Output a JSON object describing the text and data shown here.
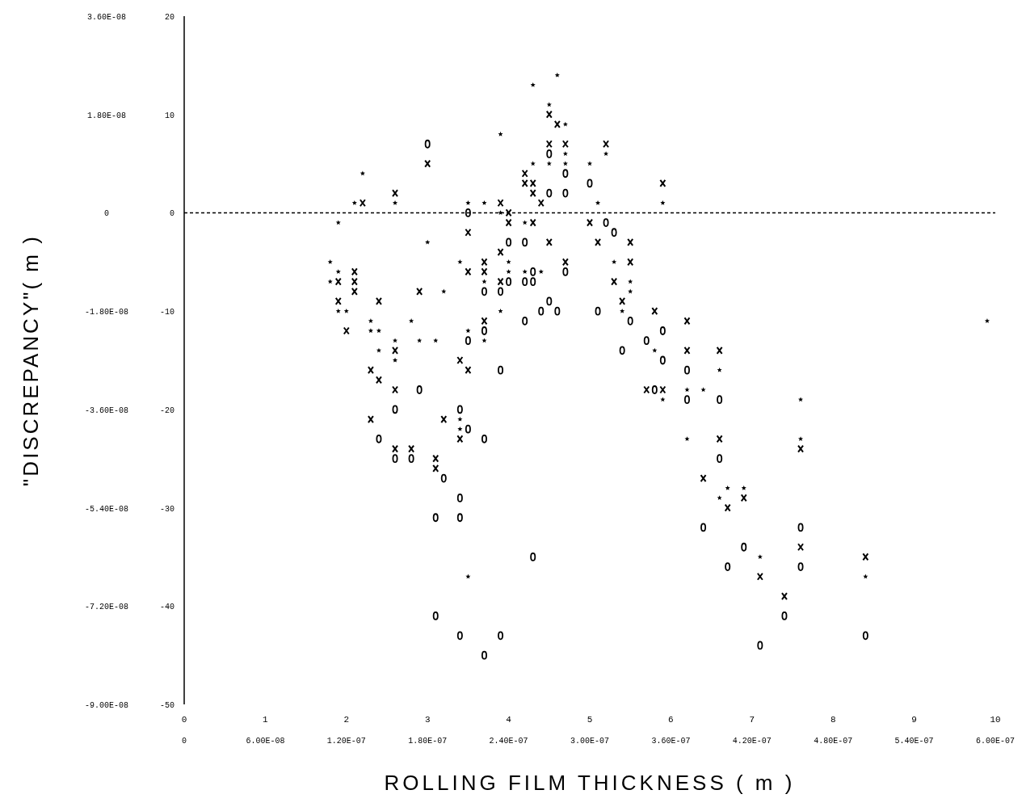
{
  "chart_data": {
    "type": "scatter",
    "xlabel": "ROLLING FILM THICKNESS ( m )",
    "ylabel": "\"DISCREPANCY\"( m )",
    "xlim": [
      0,
      6e-07
    ],
    "xticks": [
      0,
      {
        "value": 6e-08,
        "label": "6.00E-08"
      },
      {
        "value": 1.2e-07,
        "label": "1.20E-07"
      },
      {
        "value": 1.8e-07,
        "label": "1.80E-07"
      },
      {
        "value": 2.4e-07,
        "label": "2.40E-07"
      },
      {
        "value": 3e-07,
        "label": "3.00E-07"
      },
      {
        "value": 3.6e-07,
        "label": "3.60E-07"
      },
      {
        "value": 4.2e-07,
        "label": "4.20E-07"
      },
      {
        "value": 4.8e-07,
        "label": "4.80E-07"
      },
      {
        "value": 5.4e-07,
        "label": "5.40E-07"
      },
      {
        "value": 6e-07,
        "label": "6.00E-07"
      }
    ],
    "x2lim": [
      0,
      10
    ],
    "x2ticks": [
      0,
      1,
      2,
      3,
      4,
      5,
      6,
      7,
      8,
      9,
      10
    ],
    "ylim": [
      -9e-08,
      3.6e-08
    ],
    "yticks": [
      {
        "value": 3.6e-08,
        "label": "3.60E-08"
      },
      {
        "value": 1.8e-08,
        "label": "1.80E-08"
      },
      0,
      {
        "value": -1.8e-08,
        "label": "-1.80E-08"
      },
      {
        "value": -3.6e-08,
        "label": "-3.60E-08"
      },
      {
        "value": -5.4e-08,
        "label": "-5.40E-08"
      },
      {
        "value": -7.2e-08,
        "label": "-7.20E-08"
      },
      {
        "value": -9e-08,
        "label": "-9.00E-08"
      }
    ],
    "y2lim": [
      -50,
      20
    ],
    "y2ticks": [
      20,
      10,
      0,
      -10,
      -20,
      -30,
      -40,
      -50
    ],
    "ref_lines": [
      {
        "axis": "y",
        "value": 0,
        "line_style": "dashed",
        "color": "#000000"
      }
    ],
    "series": [
      {
        "color": "#000000",
        "marker": "cross",
        "x": [
          2.7e-07,
          2.76e-07,
          2.7e-07,
          2.82e-07,
          3.12e-07,
          1.8e-07,
          2.52e-07,
          2.52e-07,
          2.58e-07,
          3.54e-07,
          1.56e-07,
          2.58e-07,
          1.32e-07,
          2.34e-07,
          2.64e-07,
          2.4e-07,
          2.4e-07,
          2.58e-07,
          3e-07,
          2.1e-07,
          2.7e-07,
          3.06e-07,
          3.3e-07,
          2.34e-07,
          2.22e-07,
          2.82e-07,
          3.3e-07,
          1.26e-07,
          2.1e-07,
          2.22e-07,
          1.14e-07,
          1.26e-07,
          2.34e-07,
          3.18e-07,
          1.26e-07,
          1.74e-07,
          1.14e-07,
          1.44e-07,
          3.24e-07,
          2.22e-07,
          3.48e-07,
          3.72e-07,
          1.2e-07,
          1.56e-07,
          3.72e-07,
          3.96e-07,
          2.04e-07,
          1.38e-07,
          2.1e-07,
          1.44e-07,
          1.56e-07,
          3.42e-07,
          3.54e-07,
          1.38e-07,
          1.92e-07,
          2.04e-07,
          3.96e-07,
          1.56e-07,
          1.68e-07,
          4.56e-07,
          1.86e-07,
          1.86e-07,
          3.84e-07,
          4.14e-07,
          4.02e-07,
          4.56e-07,
          5.04e-07,
          4.26e-07,
          4.44e-07
        ],
        "values": [
          1.8e-08,
          1.62e-08,
          1.26e-08,
          1.26e-08,
          1.26e-08,
          9e-09,
          7.2e-09,
          5.4e-09,
          5.4e-09,
          5.4e-09,
          3.6e-09,
          3.6e-09,
          1.8e-09,
          1.8e-09,
          1.8e-09,
          0,
          -1.8e-09,
          -1.8e-09,
          -1.8e-09,
          -3.6e-09,
          -5.4e-09,
          -5.4e-09,
          -5.4e-09,
          -7.2e-09,
          -9e-09,
          -9e-09,
          -9e-09,
          -1.08e-08,
          -1.08e-08,
          -1.08e-08,
          -1.26e-08,
          -1.26e-08,
          -1.26e-08,
          -1.26e-08,
          -1.44e-08,
          -1.44e-08,
          -1.62e-08,
          -1.62e-08,
          -1.62e-08,
          -1.98e-08,
          -1.8e-08,
          -1.98e-08,
          -2.16e-08,
          -2.52e-08,
          -2.52e-08,
          -2.52e-08,
          -2.7e-08,
          -2.88e-08,
          -2.88e-08,
          -3.06e-08,
          -3.24e-08,
          -3.24e-08,
          -3.24e-08,
          -3.78e-08,
          -3.78e-08,
          -4.14e-08,
          -4.14e-08,
          -4.32e-08,
          -4.32e-08,
          -4.32e-08,
          -4.5e-08,
          -4.68e-08,
          -4.86e-08,
          -5.22e-08,
          -5.4e-08,
          -6.12e-08,
          -6.3e-08,
          -6.66e-08,
          -7.02e-08
        ]
      },
      {
        "color": "#000000",
        "marker": "circle",
        "x": [
          1.8e-07,
          2.7e-07,
          2.82e-07,
          3e-07,
          2.7e-07,
          2.82e-07,
          2.1e-07,
          3.12e-07,
          3.18e-07,
          2.4e-07,
          2.52e-07,
          2.82e-07,
          2.58e-07,
          2.4e-07,
          2.52e-07,
          2.58e-07,
          2.22e-07,
          2.34e-07,
          2.7e-07,
          2.64e-07,
          2.76e-07,
          3.06e-07,
          2.52e-07,
          3.3e-07,
          2.22e-07,
          3.54e-07,
          2.1e-07,
          3.42e-07,
          3.24e-07,
          3.54e-07,
          3.72e-07,
          2.34e-07,
          1.74e-07,
          3.48e-07,
          3.72e-07,
          3.96e-07,
          1.56e-07,
          2.04e-07,
          2.1e-07,
          1.44e-07,
          2.22e-07,
          3.96e-07,
          1.56e-07,
          1.68e-07,
          1.92e-07,
          2.04e-07,
          1.86e-07,
          2.04e-07,
          3.84e-07,
          4.56e-07,
          4.14e-07,
          2.58e-07,
          4.02e-07,
          4.56e-07,
          4.44e-07,
          1.86e-07,
          2.04e-07,
          2.34e-07,
          5.04e-07,
          4.26e-07,
          2.22e-07
        ],
        "values": [
          1.26e-08,
          1.08e-08,
          7.2e-09,
          5.4e-09,
          3.6e-09,
          3.6e-09,
          0,
          -1.8e-09,
          -3.6e-09,
          -5.4e-09,
          -5.4e-09,
          -1.08e-08,
          -1.08e-08,
          -1.26e-08,
          -1.26e-08,
          -1.26e-08,
          -1.44e-08,
          -1.44e-08,
          -1.62e-08,
          -1.8e-08,
          -1.8e-08,
          -1.8e-08,
          -1.98e-08,
          -1.98e-08,
          -2.16e-08,
          -2.16e-08,
          -2.34e-08,
          -2.34e-08,
          -2.52e-08,
          -2.7e-08,
          -2.88e-08,
          -2.88e-08,
          -3.24e-08,
          -3.24e-08,
          -3.42e-08,
          -3.42e-08,
          -3.6e-08,
          -3.6e-08,
          -3.96e-08,
          -4.14e-08,
          -4.14e-08,
          -4.5e-08,
          -4.5e-08,
          -4.5e-08,
          -4.86e-08,
          -5.22e-08,
          -5.58e-08,
          -5.58e-08,
          -5.76e-08,
          -5.76e-08,
          -6.12e-08,
          -6.3e-08,
          -6.48e-08,
          -6.48e-08,
          -7.38e-08,
          -7.38e-08,
          -7.74e-08,
          -7.74e-08,
          -7.74e-08,
          -7.92e-08,
          -8.1e-08
        ]
      },
      {
        "color": "#000000",
        "marker": "star",
        "x": [
          2.76e-07,
          2.58e-07,
          2.7e-07,
          2.34e-07,
          2.82e-07,
          2.82e-07,
          3.12e-07,
          2.7e-07,
          2.58e-07,
          2.82e-07,
          3e-07,
          1.32e-07,
          1.26e-07,
          1.56e-07,
          2.1e-07,
          2.22e-07,
          3.06e-07,
          3.54e-07,
          2.34e-07,
          1.14e-07,
          2.52e-07,
          1.8e-07,
          1.08e-07,
          2.04e-07,
          2.4e-07,
          3.18e-07,
          1.14e-07,
          2.4e-07,
          2.52e-07,
          2.64e-07,
          1.08e-07,
          2.22e-07,
          3.3e-07,
          1.92e-07,
          3.3e-07,
          1.14e-07,
          1.2e-07,
          2.34e-07,
          3.24e-07,
          1.38e-07,
          1.68e-07,
          1.38e-07,
          1.44e-07,
          2.1e-07,
          1.56e-07,
          1.74e-07,
          1.86e-07,
          2.22e-07,
          1.44e-07,
          3.48e-07,
          1.56e-07,
          3.96e-07,
          3.72e-07,
          3.84e-07,
          3.54e-07,
          4.56e-07,
          2.04e-07,
          2.04e-07,
          3.72e-07,
          4.56e-07,
          4.02e-07,
          4.14e-07,
          3.96e-07,
          4.26e-07,
          2.1e-07,
          5.04e-07,
          5.94e-07
        ],
        "values": [
          2.52e-08,
          2.34e-08,
          1.98e-08,
          1.44e-08,
          1.62e-08,
          1.08e-08,
          1.08e-08,
          9e-09,
          9e-09,
          9e-09,
          9e-09,
          7.2e-09,
          1.8e-09,
          1.8e-09,
          1.8e-09,
          1.8e-09,
          1.8e-09,
          1.8e-09,
          0,
          -1.8e-09,
          -1.8e-09,
          -5.4e-09,
          -9e-09,
          -9e-09,
          -9e-09,
          -9e-09,
          -1.08e-08,
          -1.08e-08,
          -1.08e-08,
          -1.08e-08,
          -1.26e-08,
          -1.26e-08,
          -1.26e-08,
          -1.44e-08,
          -1.44e-08,
          -1.8e-08,
          -1.8e-08,
          -1.8e-08,
          -1.8e-08,
          -1.98e-08,
          -1.98e-08,
          -2.16e-08,
          -2.16e-08,
          -2.16e-08,
          -2.34e-08,
          -2.34e-08,
          -2.34e-08,
          -2.34e-08,
          -2.52e-08,
          -2.52e-08,
          -2.7e-08,
          -2.88e-08,
          -3.24e-08,
          -3.24e-08,
          -3.42e-08,
          -3.42e-08,
          -3.78e-08,
          -3.96e-08,
          -4.14e-08,
          -4.14e-08,
          -5.04e-08,
          -5.04e-08,
          -5.22e-08,
          -6.3e-08,
          -6.66e-08,
          -6.66e-08,
          -1.98e-08
        ]
      }
    ]
  }
}
